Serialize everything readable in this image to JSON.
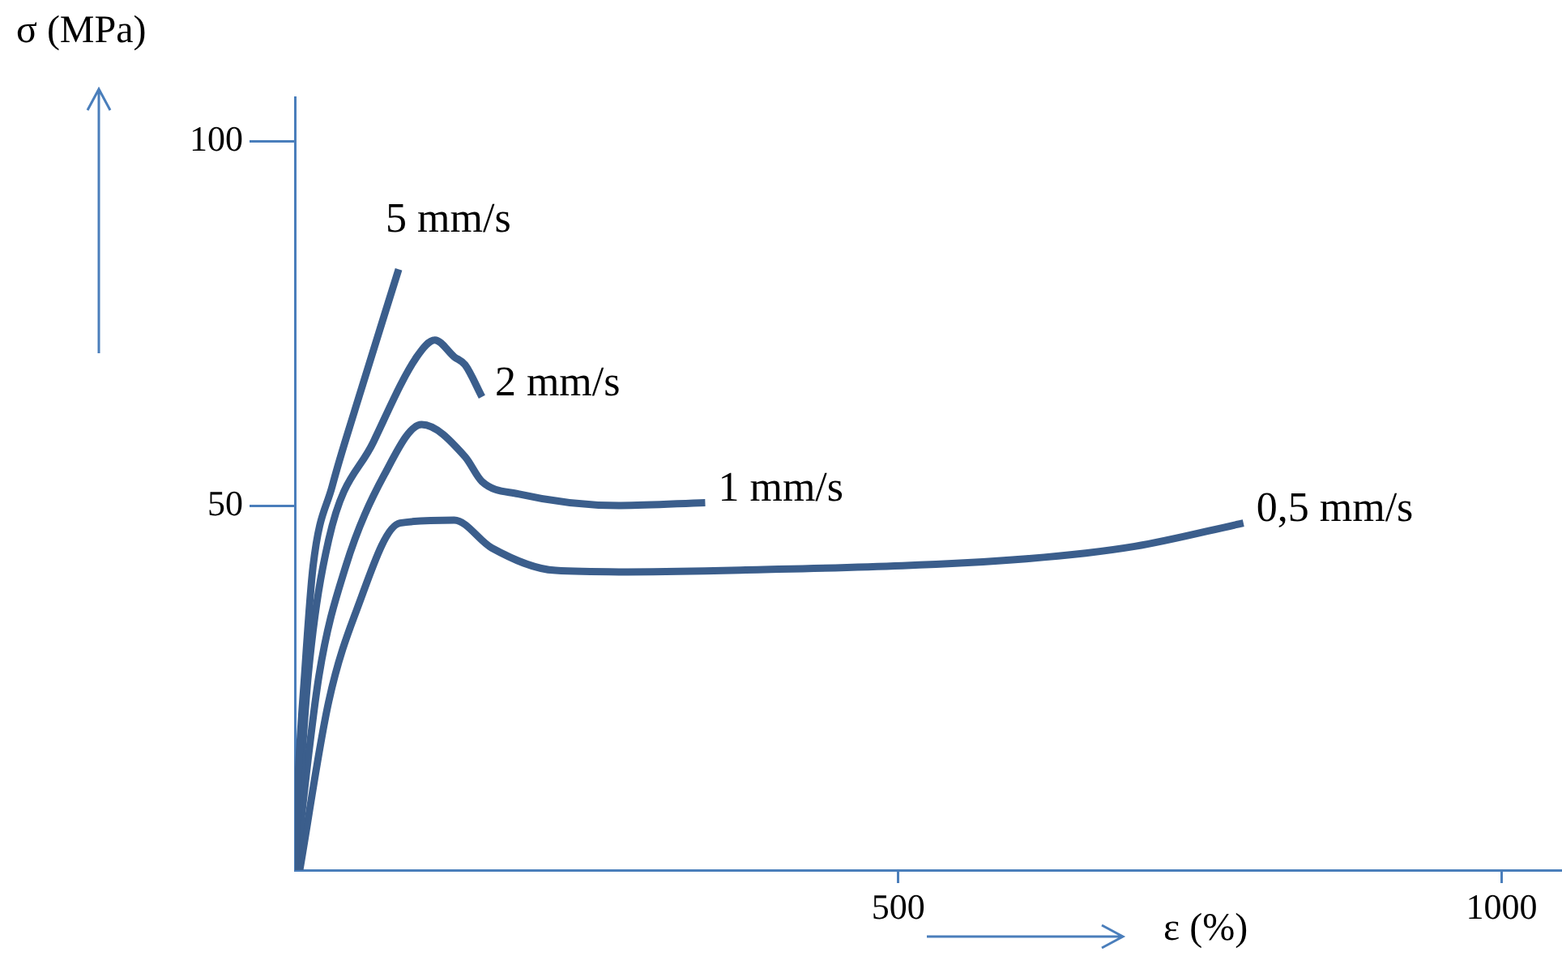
{
  "chart_data": {
    "type": "line",
    "xlabel": "ε (%)",
    "ylabel": "σ (MPa)",
    "xlim": [
      0,
      1050
    ],
    "ylim": [
      0,
      106
    ],
    "xticks": [
      500,
      1000
    ],
    "yticks": [
      50,
      100
    ],
    "legend": false,
    "marker": "none",
    "line_style": "solid",
    "series": [
      {
        "name": "5 mm/s",
        "color": "#3b5e8c",
        "x": [
          0,
          2.7,
          8,
          15,
          31,
          51,
          86
        ],
        "values": [
          0,
          12.7,
          26.7,
          41.6,
          52.7,
          63.8,
          82.4
        ]
      },
      {
        "name": "2 mm/s",
        "color": "#3b5e8c",
        "x": [
          0,
          11,
          28,
          65,
          101,
          116,
          132,
          141,
          155
        ],
        "values": [
          1,
          26.7,
          45.3,
          58.7,
          70.4,
          72.7,
          70.4,
          69.3,
          64.9
        ]
      },
      {
        "name": "1 mm/s",
        "color": "#3b5e8c",
        "x": [
          1,
          20,
          42,
          74,
          105,
          141,
          155,
          185,
          270,
          340
        ],
        "values": [
          1,
          26.7,
          41.6,
          54.2,
          61.1,
          56.7,
          53.3,
          51.6,
          50,
          50.4
        ]
      },
      {
        "name": "0,5 mm/s",
        "color": "#3b5e8c",
        "x": [
          4,
          28,
          51,
          87,
          132,
          163,
          216,
          276,
          362,
          606,
          696,
          786
        ],
        "values": [
          0,
          23.1,
          35.6,
          47.6,
          48,
          44.2,
          41.1,
          40.9,
          41.1,
          42.7,
          44.4,
          47.6
        ]
      }
    ]
  }
}
